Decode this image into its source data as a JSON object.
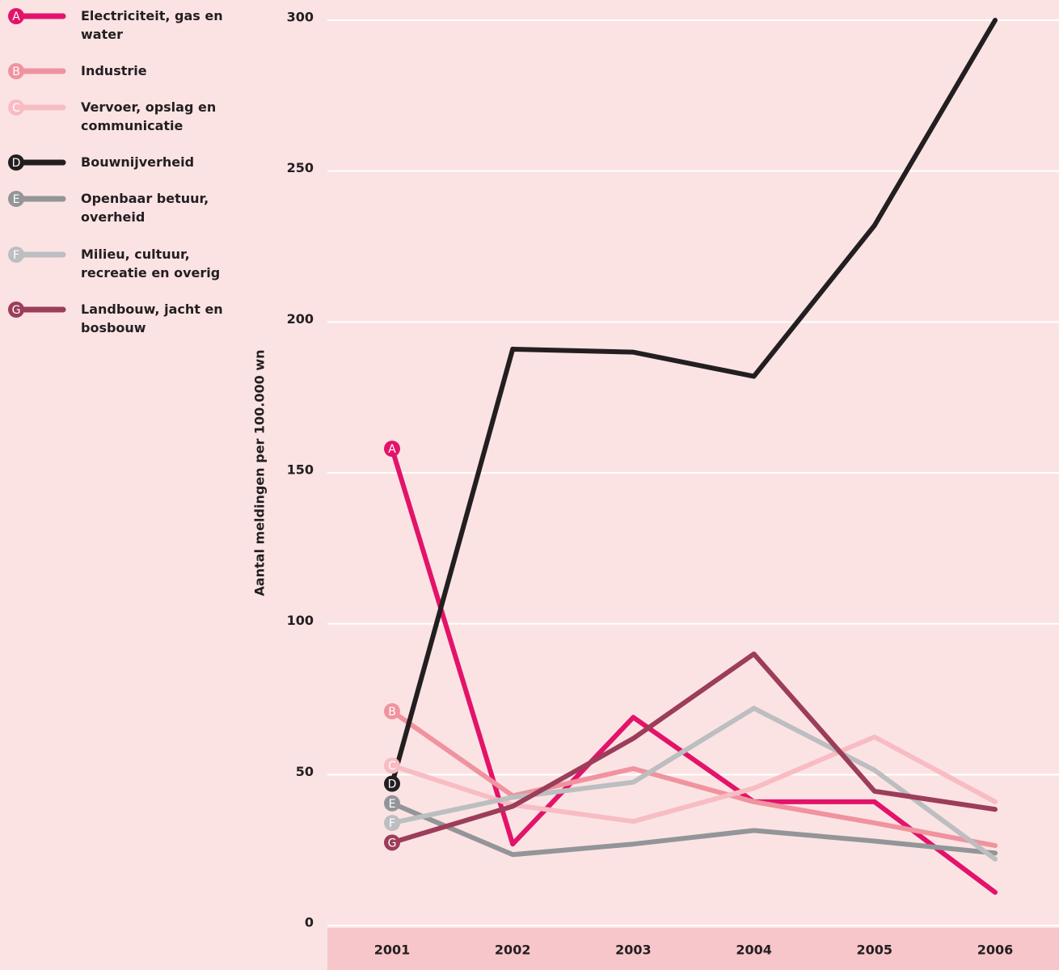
{
  "chart_data": {
    "type": "line",
    "y_label": "Aantal meldingen per 100.000 wn",
    "categories": [
      "2001",
      "2002",
      "2003",
      "2004",
      "2005",
      "2006"
    ],
    "series": [
      {
        "name": "Electriciteit, gas en water",
        "label": "A",
        "color": "#e3136a",
        "values": [
          158,
          27,
          69,
          41,
          41,
          11
        ]
      },
      {
        "name": "Industrie",
        "label": "B",
        "color": "#f0939f",
        "values": [
          71,
          43,
          52,
          41,
          34,
          26.5
        ]
      },
      {
        "name": "Vervoer, opslag en communicatie",
        "label": "C",
        "color": "#f8bcc3",
        "values": [
          53,
          40,
          34.5,
          45.5,
          62.5,
          41
        ]
      },
      {
        "name": "Bouwnijverheid",
        "label": "D",
        "color": "#231f20",
        "values": [
          47,
          191,
          190,
          182,
          232,
          300
        ]
      },
      {
        "name": "Openbaar betuur, overheid",
        "label": "E",
        "color": "#939598",
        "values": [
          40.5,
          23.5,
          27,
          31.5,
          28,
          24
        ]
      },
      {
        "name": "Milieu, cultuur, recreatie en overig",
        "label": "F",
        "color": "#bcbec0",
        "values": [
          34,
          42.5,
          47.5,
          72,
          51.5,
          22
        ]
      },
      {
        "name": "Landbouw, jacht en bosbouw",
        "label": "G",
        "color": "#9c3d5a",
        "values": [
          27.5,
          39.5,
          62,
          90,
          44.5,
          38.5
        ]
      }
    ],
    "ylim": [
      0,
      300
    ],
    "yticks": [
      0,
      50,
      100,
      150,
      200,
      250,
      300
    ],
    "grid": true
  }
}
